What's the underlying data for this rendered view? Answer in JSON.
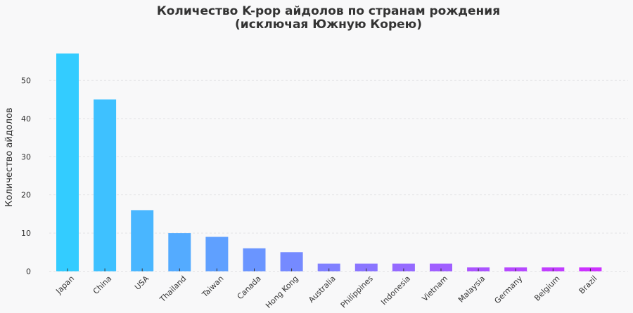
{
  "chart_data": {
    "type": "bar",
    "title_lines": [
      "Количество K-pop айдолов по странам рождения",
      "(исключая Южную Корею)"
    ],
    "xlabel": "",
    "ylabel": "Количество айдолов",
    "categories": [
      "Japan",
      "China",
      "USA",
      "Thailand",
      "Taiwan",
      "Canada",
      "Hong Kong",
      "Australia",
      "Philippines",
      "Indonesia",
      "Vietnam",
      "Malaysia",
      "Germany",
      "Belgium",
      "Brazil"
    ],
    "values": [
      57,
      45,
      16,
      10,
      9,
      6,
      5,
      2,
      2,
      2,
      2,
      1,
      1,
      1,
      1
    ],
    "ylim": [
      0,
      60
    ],
    "yticks": [
      0,
      10,
      20,
      30,
      40,
      50
    ],
    "grid": true,
    "gradient": {
      "start": "#33ccff",
      "end": "#cc33ff"
    }
  }
}
